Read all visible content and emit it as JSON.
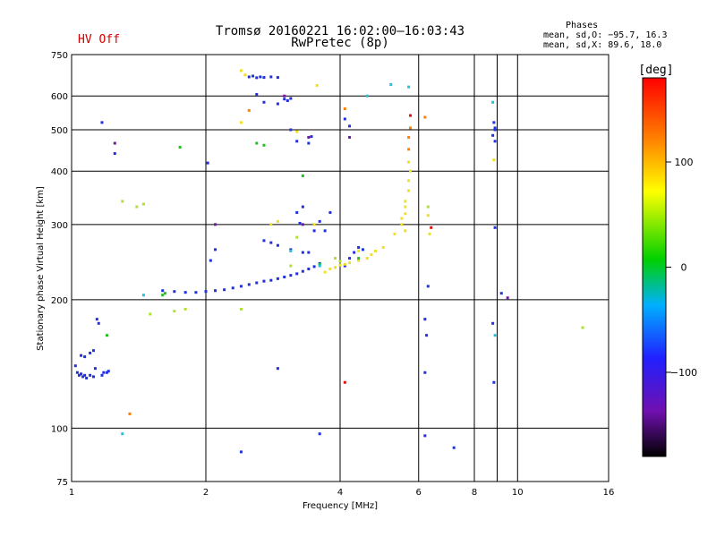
{
  "header": {
    "status": "HV Off",
    "title": "Tromsø 20160221 16:02:00–16:03:43",
    "subtitle": "RwPretec (8p)",
    "phase_title": "Phases",
    "phase_o": "mean, sd,O: −95.7, 16.3",
    "phase_x": "mean, sd,X:  89.6, 18.0"
  },
  "colorbar": {
    "label": "[deg]",
    "ticks": [
      "100",
      "0",
      "−100"
    ],
    "tick_values": [
      100,
      0,
      -100
    ],
    "range": [
      -180,
      180
    ]
  },
  "chart_data": {
    "type": "scatter",
    "title": "Tromsø 20160221 16:02:00–16:03:43",
    "subtitle": "RwPretec (8p)",
    "xlabel": "Frequency [MHz]",
    "ylabel": "Stationary phase Virtual Height [km]",
    "xscale": "log",
    "yscale": "log",
    "xlim": [
      1,
      16
    ],
    "ylim": [
      75,
      750
    ],
    "xticks": [
      1,
      2,
      4,
      6,
      8,
      10,
      16
    ],
    "xtick_labels": [
      "1",
      "2",
      "4",
      "6",
      "8",
      "10",
      "16"
    ],
    "yticks": [
      75,
      100,
      200,
      300,
      400,
      500,
      600,
      750
    ],
    "ytick_labels": [
      "75",
      "100",
      "200",
      "300",
      "400",
      "500",
      "600",
      "750"
    ],
    "grid": true,
    "color_scale": "phase [deg], -180 to 180",
    "series": [
      {
        "color": "#2030e0",
        "phase": -100,
        "points": [
          [
            1.02,
            140
          ],
          [
            1.03,
            135
          ],
          [
            1.04,
            133
          ],
          [
            1.05,
            134
          ],
          [
            1.06,
            132
          ],
          [
            1.07,
            133
          ],
          [
            1.08,
            131
          ],
          [
            1.1,
            133
          ],
          [
            1.12,
            132
          ],
          [
            1.13,
            138
          ],
          [
            1.14,
            180
          ],
          [
            1.15,
            176
          ],
          [
            1.17,
            133
          ],
          [
            1.18,
            135
          ],
          [
            1.2,
            135
          ],
          [
            1.21,
            136
          ],
          [
            1.05,
            148
          ],
          [
            1.07,
            147
          ],
          [
            1.1,
            150
          ],
          [
            1.12,
            152
          ],
          [
            1.17,
            520
          ],
          [
            1.25,
            440
          ],
          [
            1.6,
            210
          ],
          [
            1.7,
            209
          ],
          [
            1.8,
            208
          ],
          [
            1.9,
            208
          ],
          [
            2.0,
            209
          ],
          [
            2.1,
            210
          ],
          [
            2.2,
            211
          ],
          [
            2.3,
            213
          ],
          [
            2.4,
            215
          ],
          [
            2.5,
            217
          ],
          [
            2.6,
            219
          ],
          [
            2.7,
            221
          ],
          [
            2.8,
            222
          ],
          [
            2.9,
            224
          ],
          [
            3.0,
            226
          ],
          [
            3.1,
            228
          ],
          [
            3.2,
            230
          ],
          [
            3.3,
            233
          ],
          [
            3.4,
            236
          ],
          [
            3.5,
            239
          ],
          [
            3.6,
            243
          ],
          [
            2.05,
            247
          ],
          [
            2.1,
            262
          ],
          [
            2.02,
            418
          ],
          [
            2.5,
            665
          ],
          [
            2.55,
            668
          ],
          [
            2.6,
            662
          ],
          [
            2.65,
            665
          ],
          [
            2.7,
            663
          ],
          [
            2.8,
            665
          ],
          [
            2.9,
            663
          ],
          [
            3.0,
            590
          ],
          [
            3.05,
            585
          ],
          [
            3.1,
            592
          ],
          [
            2.6,
            605
          ],
          [
            2.7,
            580
          ],
          [
            2.9,
            575
          ],
          [
            3.2,
            320
          ],
          [
            3.3,
            330
          ],
          [
            3.25,
            302
          ],
          [
            2.7,
            275
          ],
          [
            2.8,
            272
          ],
          [
            2.9,
            268
          ],
          [
            3.1,
            262
          ],
          [
            3.3,
            258
          ],
          [
            3.4,
            258
          ],
          [
            3.5,
            290
          ],
          [
            3.6,
            305
          ],
          [
            3.7,
            290
          ],
          [
            4.1,
            240
          ],
          [
            4.2,
            250
          ],
          [
            4.3,
            258
          ],
          [
            4.4,
            265
          ],
          [
            4.5,
            262
          ],
          [
            3.1,
            500
          ],
          [
            3.4,
            465
          ],
          [
            3.45,
            482
          ],
          [
            3.2,
            470
          ],
          [
            6.2,
            135
          ],
          [
            6.2,
            180
          ],
          [
            6.25,
            165
          ],
          [
            6.3,
            215
          ],
          [
            6.2,
            96
          ],
          [
            7.2,
            90
          ],
          [
            8.8,
            485
          ],
          [
            8.9,
            500
          ],
          [
            8.9,
            505
          ],
          [
            8.85,
            520
          ],
          [
            8.9,
            470
          ],
          [
            9.2,
            207
          ],
          [
            8.9,
            295
          ],
          [
            8.8,
            176
          ],
          [
            8.85,
            128
          ],
          [
            2.4,
            88
          ],
          [
            3.6,
            97
          ],
          [
            2.9,
            138
          ],
          [
            3.8,
            320
          ],
          [
            4.1,
            530
          ],
          [
            4.2,
            510
          ]
        ]
      },
      {
        "color": "#f0e020",
        "phase": 100,
        "points": [
          [
            3.7,
            232
          ],
          [
            3.8,
            236
          ],
          [
            3.9,
            238
          ],
          [
            4.0,
            241
          ],
          [
            4.1,
            242
          ],
          [
            4.2,
            244
          ],
          [
            4.4,
            247
          ],
          [
            4.6,
            250
          ],
          [
            4.7,
            255
          ],
          [
            4.8,
            260
          ],
          [
            5.0,
            265
          ],
          [
            5.3,
            285
          ],
          [
            5.5,
            300
          ],
          [
            5.6,
            318
          ],
          [
            5.6,
            340
          ],
          [
            5.7,
            360
          ],
          [
            5.7,
            380
          ],
          [
            5.75,
            400
          ],
          [
            5.7,
            420
          ],
          [
            5.6,
            330
          ],
          [
            5.5,
            310
          ],
          [
            5.6,
            290
          ],
          [
            2.4,
            688
          ],
          [
            2.45,
            672
          ],
          [
            2.4,
            520
          ],
          [
            3.2,
            495
          ],
          [
            3.55,
            635
          ],
          [
            8.85,
            425
          ],
          [
            2.8,
            300
          ],
          [
            2.9,
            305
          ],
          [
            3.5,
            300
          ],
          [
            6.3,
            315
          ],
          [
            6.35,
            285
          ],
          [
            4.4,
            260
          ]
        ]
      },
      {
        "color": "#ff8000",
        "phase": 150,
        "points": [
          [
            5.7,
            450
          ],
          [
            5.7,
            480
          ],
          [
            5.75,
            505
          ],
          [
            6.2,
            535
          ],
          [
            1.35,
            108
          ],
          [
            4.1,
            560
          ],
          [
            2.5,
            555
          ]
        ]
      },
      {
        "color": "#e01010",
        "phase": 175,
        "points": [
          [
            5.75,
            540
          ],
          [
            4.1,
            128
          ],
          [
            6.4,
            295
          ]
        ]
      },
      {
        "color": "#20c020",
        "phase": 25,
        "points": [
          [
            1.6,
            205
          ],
          [
            1.62,
            207
          ],
          [
            1.2,
            165
          ],
          [
            1.75,
            455
          ],
          [
            2.7,
            460
          ],
          [
            3.6,
            242
          ],
          [
            4.4,
            250
          ],
          [
            2.6,
            465
          ],
          [
            3.3,
            390
          ]
        ]
      },
      {
        "color": "#20c0e0",
        "phase": -45,
        "points": [
          [
            1.45,
            205
          ],
          [
            3.6,
            240
          ],
          [
            4.6,
            600
          ],
          [
            5.2,
            638
          ],
          [
            5.7,
            630
          ],
          [
            8.9,
            165
          ],
          [
            8.8,
            580
          ],
          [
            1.3,
            97
          ],
          [
            3.1,
            260
          ]
        ]
      },
      {
        "color": "#b0e030",
        "phase": 60,
        "points": [
          [
            1.4,
            330
          ],
          [
            1.45,
            335
          ],
          [
            1.3,
            340
          ],
          [
            1.8,
            190
          ],
          [
            1.5,
            185
          ],
          [
            1.7,
            188
          ],
          [
            2.4,
            190
          ],
          [
            3.2,
            280
          ],
          [
            3.9,
            250
          ],
          [
            6.3,
            330
          ],
          [
            14.0,
            172
          ],
          [
            3.1,
            240
          ],
          [
            4.0,
            246
          ]
        ]
      },
      {
        "color": "#7018a0",
        "phase": -140,
        "points": [
          [
            1.25,
            465
          ],
          [
            3.4,
            480
          ],
          [
            4.2,
            480
          ],
          [
            3.0,
            600
          ],
          [
            2.1,
            300
          ],
          [
            3.3,
            300
          ],
          [
            9.5,
            202
          ]
        ]
      }
    ]
  }
}
